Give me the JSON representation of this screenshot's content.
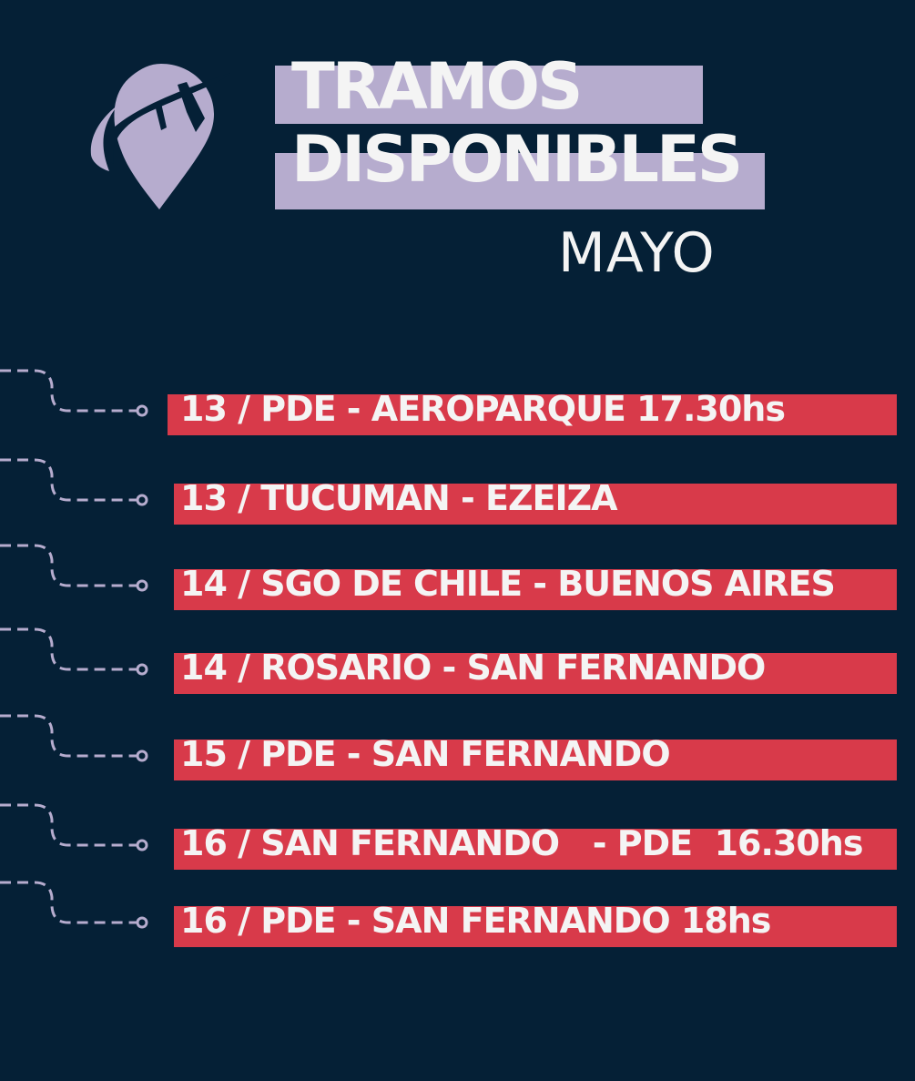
{
  "header": {
    "title_line1": "TRAMOS",
    "title_line2": "DISPONIBLES",
    "month": "MAYO",
    "logo_icon": "location-pin-airplane-icon"
  },
  "colors": {
    "background": "#052036",
    "accent_lavender": "#b6acce",
    "accent_red": "#d83a4a",
    "text": "#f4f4f4"
  },
  "routes": [
    {
      "label": "13 / PDE - AEROPARQUE 17.30hs"
    },
    {
      "label": "13 / TUCUMAN - EZEIZA"
    },
    {
      "label": "14 / SGO DE CHILE - BUENOS AIRES"
    },
    {
      "label": "14 / ROSARIO - SAN FERNANDO"
    },
    {
      "label": "15 / PDE - SAN FERNANDO"
    },
    {
      "label": "16 / SAN FERNANDO   - PDE  16.30hs"
    },
    {
      "label": "16 / PDE - SAN FERNANDO 18hs"
    }
  ]
}
